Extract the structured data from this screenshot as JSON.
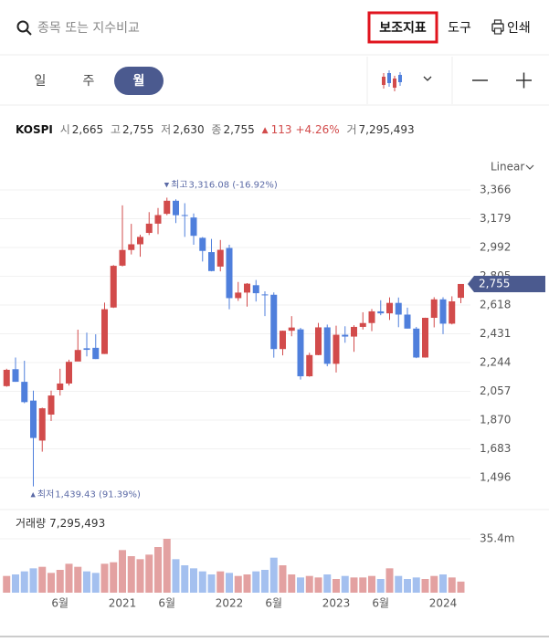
{
  "ui": {
    "search_placeholder": "종목 또는 지수비교",
    "buttons": [
      "보조지표",
      "도구",
      "인쇄"
    ],
    "tabs": [
      "일",
      "주",
      "월"
    ],
    "active_tab": 2,
    "scale_mode": "Linear"
  },
  "quote": {
    "name": "KOSPI",
    "items": [
      {
        "label": "시",
        "value": "2,665"
      },
      {
        "label": "고",
        "value": "2,755"
      },
      {
        "label": "저",
        "value": "2,630"
      },
      {
        "label": "종",
        "value": "2,755"
      }
    ],
    "change": "113",
    "change_pct": "+4.26%",
    "volume_label": "거",
    "volume": "7,295,493"
  },
  "chart_data": {
    "type": "candlestick",
    "categories": [
      null,
      null,
      null,
      null,
      null,
      null,
      "6월",
      null,
      null,
      null,
      null,
      null,
      null,
      "2021",
      null,
      null,
      null,
      null,
      "6월",
      null,
      null,
      null,
      null,
      null,
      null,
      "2022",
      null,
      null,
      null,
      null,
      "6월",
      null,
      null,
      null,
      null,
      null,
      null,
      "2023",
      null,
      null,
      null,
      null,
      "6월",
      null,
      null,
      null,
      null,
      null,
      null,
      "2024",
      null,
      null
    ],
    "open": [
      2091,
      2201,
      2119,
      1997,
      1737,
      1906,
      2066,
      2108,
      2251,
      2337,
      2340,
      2300,
      2602,
      2874,
      2976,
      3013,
      3087,
      3147,
      3211,
      3296,
      3203,
      3187,
      3055,
      2962,
      2868,
      2989,
      2663,
      2699,
      2747,
      2687,
      2685,
      2332,
      2451,
      2460,
      2155,
      2293,
      2473,
      2236,
      2425,
      2413,
      2476,
      2501,
      2577,
      2564,
      2632,
      2556,
      2465,
      2277,
      2535,
      2655,
      2497,
      2665
    ],
    "high": [
      2204,
      2277,
      2256,
      2062,
      1951,
      2062,
      2204,
      2263,
      2458,
      2439,
      2428,
      2634,
      2878,
      3266,
      3146,
      3075,
      3222,
      3249,
      3316,
      3305,
      3280,
      3213,
      3060,
      3048,
      3041,
      3010,
      2768,
      2761,
      2781,
      2707,
      2700,
      2452,
      2546,
      2470,
      2308,
      2502,
      2491,
      2484,
      2480,
      2487,
      2571,
      2592,
      2649,
      2668,
      2667,
      2601,
      2476,
      2536,
      2669,
      2669,
      2675,
      2755
    ],
    "low": [
      2087,
      2119,
      1980,
      1439,
      1665,
      1864,
      2030,
      2095,
      2262,
      2284,
      2267,
      2300,
      2599,
      2869,
      2947,
      2932,
      3073,
      3079,
      3202,
      3151,
      3061,
      3010,
      2901,
      2837,
      2837,
      2591,
      2645,
      2608,
      2641,
      2546,
      2276,
      2291,
      2415,
      2134,
      2152,
      2292,
      2220,
      2180,
      2373,
      2314,
      2459,
      2448,
      2552,
      2521,
      2474,
      2465,
      2273,
      2276,
      2473,
      2429,
      2492,
      2630
    ],
    "close": [
      2197,
      2119,
      1987,
      1754,
      1947,
      2030,
      2108,
      2249,
      2326,
      2327,
      2267,
      2591,
      2873,
      2976,
      3013,
      3061,
      3147,
      3203,
      3296,
      3202,
      3199,
      3068,
      2970,
      2839,
      2977,
      2663,
      2699,
      2757,
      2695,
      2685,
      2332,
      2451,
      2472,
      2155,
      2293,
      2473,
      2236,
      2425,
      2413,
      2476,
      2501,
      2577,
      2564,
      2632,
      2556,
      2465,
      2277,
      2535,
      2655,
      2497,
      2642,
      2755
    ],
    "volume": [
      11000000,
      12000000,
      14000000,
      16000000,
      17000000,
      13000000,
      15000000,
      19000000,
      17000000,
      14000000,
      13000000,
      19000000,
      20000000,
      28000000,
      24000000,
      22000000,
      25000000,
      30000000,
      35400000,
      22000000,
      18000000,
      16000000,
      14000000,
      12000000,
      14000000,
      13000000,
      11000000,
      12000000,
      14000000,
      15000000,
      23000000,
      18000000,
      12000000,
      10000000,
      11000000,
      10000000,
      12000000,
      9000000,
      11000000,
      10000000,
      10000000,
      11000000,
      9000000,
      16000000,
      11000000,
      9000000,
      10000000,
      9000000,
      11000000,
      12000000,
      10000000,
      7295493
    ],
    "up_color": "#d24b4b",
    "down_color": "#4f7fdc",
    "up_volume_color": "#e3a1a1",
    "down_volume_color": "#a4c0ef",
    "ylim": [
      1336,
      3473
    ],
    "yticks": [
      {
        "value": 3366,
        "label": "3,366"
      },
      {
        "value": 3179,
        "label": "3,179"
      },
      {
        "value": 2992,
        "label": "2,992"
      },
      {
        "value": 2805,
        "label": "2,805"
      },
      {
        "value": 2618,
        "label": "2,618"
      },
      {
        "value": 2431,
        "label": "2,431"
      },
      {
        "value": 2244,
        "label": "2,244"
      },
      {
        "value": 2057,
        "label": "2,057"
      },
      {
        "value": 1870,
        "label": "1,870"
      },
      {
        "value": 1683,
        "label": "1,683"
      },
      {
        "value": 1496,
        "label": "1,496"
      }
    ],
    "grid": true,
    "last_price_label": "2,755",
    "annotations": [
      {
        "label": "최고",
        "text": "3,316.08 (-16.92%)"
      },
      {
        "label": "최저",
        "text": "1,439.43 (91.39%)"
      }
    ],
    "volume_title": "거래량",
    "volume_value": "7,295,493",
    "volume_ylim": [
      0,
      53400000
    ],
    "volume_yticks": [
      {
        "value": 35400000,
        "label": "35.4m"
      }
    ]
  }
}
